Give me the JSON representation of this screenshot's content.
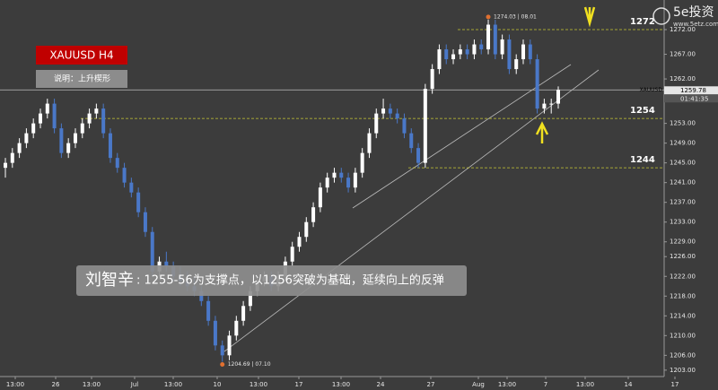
{
  "chart_data": {
    "type": "candlestick",
    "symbol": "XAUUSD  H4",
    "note": "说明：上升楔形",
    "ylim": [
      1201.7,
      1278
    ],
    "yticks": [
      {
        "value": 1272,
        "label": "1272.00"
      },
      {
        "value": 1267,
        "label": "1267.00"
      },
      {
        "value": 1262,
        "label": "1262.00"
      },
      {
        "value": 1258,
        "label": "1258.00"
      },
      {
        "value": 1253,
        "label": "1253.00"
      },
      {
        "value": 1249,
        "label": "1249.00"
      },
      {
        "value": 1245,
        "label": "1245.00"
      },
      {
        "value": 1241,
        "label": "1241.00"
      },
      {
        "value": 1237,
        "label": "1237.00"
      },
      {
        "value": 1233,
        "label": "1233.00"
      },
      {
        "value": 1229,
        "label": "1229.00"
      },
      {
        "value": 1226,
        "label": "1226.00"
      },
      {
        "value": 1222,
        "label": "1222.00"
      },
      {
        "value": 1218,
        "label": "1218.00"
      },
      {
        "value": 1214,
        "label": "1214.00"
      },
      {
        "value": 1210,
        "label": "1210.00"
      },
      {
        "value": 1206,
        "label": "1206.00"
      },
      {
        "value": 1203,
        "label": "1203.00"
      }
    ],
    "xticks": [
      "13:00",
      "26",
      "13:00",
      "Jul",
      "13:00",
      "10",
      "13:00",
      "17",
      "13:00",
      "24",
      "27",
      "Aug",
      "13:00",
      "7",
      "13:00",
      "14",
      "17"
    ],
    "up_color": "#ffffff",
    "down_color": "#4a78c8",
    "ohlc": [
      [
        1244,
        1246,
        1242,
        1245
      ],
      [
        1245,
        1248,
        1244,
        1247
      ],
      [
        1247,
        1250,
        1246,
        1249
      ],
      [
        1249,
        1252,
        1248,
        1251
      ],
      [
        1251,
        1254,
        1250,
        1253
      ],
      [
        1253,
        1256,
        1252,
        1255
      ],
      [
        1255,
        1258,
        1254,
        1257
      ],
      [
        1257,
        1258,
        1251,
        1252
      ],
      [
        1252,
        1253,
        1246,
        1247
      ],
      [
        1247,
        1250,
        1246,
        1249
      ],
      [
        1249,
        1252,
        1248,
        1251
      ],
      [
        1251,
        1254,
        1250,
        1253
      ],
      [
        1253,
        1256,
        1252,
        1255
      ],
      [
        1255,
        1257,
        1254,
        1256
      ],
      [
        1256,
        1257,
        1250,
        1251
      ],
      [
        1251,
        1252,
        1245,
        1246
      ],
      [
        1246,
        1247,
        1243,
        1244
      ],
      [
        1244,
        1245,
        1240,
        1241
      ],
      [
        1241,
        1242,
        1238,
        1239
      ],
      [
        1239,
        1240,
        1234,
        1235
      ],
      [
        1235,
        1236,
        1230,
        1231
      ],
      [
        1231,
        1232,
        1222,
        1223
      ],
      [
        1223,
        1226,
        1222,
        1225
      ],
      [
        1225,
        1227,
        1223,
        1224
      ],
      [
        1224,
        1225,
        1221,
        1222
      ],
      [
        1222,
        1224,
        1220,
        1221
      ],
      [
        1221,
        1223,
        1219,
        1220
      ],
      [
        1220,
        1222,
        1218,
        1219
      ],
      [
        1219,
        1220,
        1216,
        1217
      ],
      [
        1217,
        1218,
        1212,
        1213
      ],
      [
        1213,
        1214,
        1207,
        1208
      ],
      [
        1208,
        1209,
        1204.69,
        1206
      ],
      [
        1206,
        1211,
        1205,
        1210
      ],
      [
        1210,
        1214,
        1209,
        1213
      ],
      [
        1213,
        1217,
        1212,
        1216
      ],
      [
        1216,
        1220,
        1215,
        1219
      ],
      [
        1219,
        1222,
        1218,
        1221
      ],
      [
        1221,
        1223,
        1220,
        1222
      ],
      [
        1222,
        1223,
        1219,
        1220
      ],
      [
        1220,
        1223,
        1219,
        1222
      ],
      [
        1222,
        1226,
        1221,
        1225
      ],
      [
        1225,
        1229,
        1224,
        1228
      ],
      [
        1228,
        1231,
        1227,
        1230
      ],
      [
        1230,
        1234,
        1229,
        1233
      ],
      [
        1233,
        1237,
        1232,
        1236
      ],
      [
        1236,
        1241,
        1235,
        1240
      ],
      [
        1240,
        1243,
        1239,
        1242
      ],
      [
        1242,
        1244,
        1241,
        1243
      ],
      [
        1243,
        1244,
        1241,
        1242
      ],
      [
        1242,
        1243,
        1239,
        1240
      ],
      [
        1240,
        1244,
        1239,
        1243
      ],
      [
        1243,
        1248,
        1242,
        1247
      ],
      [
        1247,
        1252,
        1246,
        1251
      ],
      [
        1251,
        1256,
        1250,
        1255
      ],
      [
        1255,
        1258,
        1254,
        1256
      ],
      [
        1256,
        1257,
        1254,
        1255
      ],
      [
        1255,
        1256,
        1253,
        1254
      ],
      [
        1254,
        1255,
        1250,
        1251
      ],
      [
        1251,
        1252,
        1247,
        1248
      ],
      [
        1248,
        1249,
        1244,
        1245
      ],
      [
        1245,
        1261,
        1244,
        1260
      ],
      [
        1260,
        1265,
        1259,
        1264
      ],
      [
        1264,
        1269,
        1263,
        1268
      ],
      [
        1268,
        1269,
        1265,
        1266
      ],
      [
        1266,
        1268,
        1265,
        1267
      ],
      [
        1267,
        1269,
        1266,
        1268
      ],
      [
        1268,
        1269,
        1266,
        1267
      ],
      [
        1267,
        1270,
        1266,
        1269
      ],
      [
        1269,
        1270,
        1267,
        1268
      ],
      [
        1268,
        1274.03,
        1267,
        1273
      ],
      [
        1273,
        1274,
        1266,
        1267
      ],
      [
        1267,
        1271,
        1266,
        1270
      ],
      [
        1270,
        1271,
        1263,
        1264
      ],
      [
        1264,
        1267,
        1263,
        1266
      ],
      [
        1266,
        1270,
        1265,
        1269
      ],
      [
        1269,
        1270,
        1265,
        1266
      ],
      [
        1266,
        1267,
        1255,
        1256
      ],
      [
        1256,
        1258,
        1255,
        1257
      ],
      [
        1257,
        1258,
        1255,
        1257
      ],
      [
        1257,
        1260.5,
        1256,
        1259.78
      ]
    ],
    "levels": [
      1272,
      1254,
      1244
    ],
    "level_color": "#c8c832",
    "high_label": "1274.03 | 08.01",
    "low_label": "1204.69 | 07.10",
    "last_price": 1259.78,
    "last_symbol": "XAUUSD",
    "countdown": "01:41:35",
    "logo": "5e投资",
    "logo_url": "www.5etz.com",
    "author": "刘智辛",
    "comment": ": 1255-56为支撑点，以1256突破为基础，延续向上的反弹"
  }
}
